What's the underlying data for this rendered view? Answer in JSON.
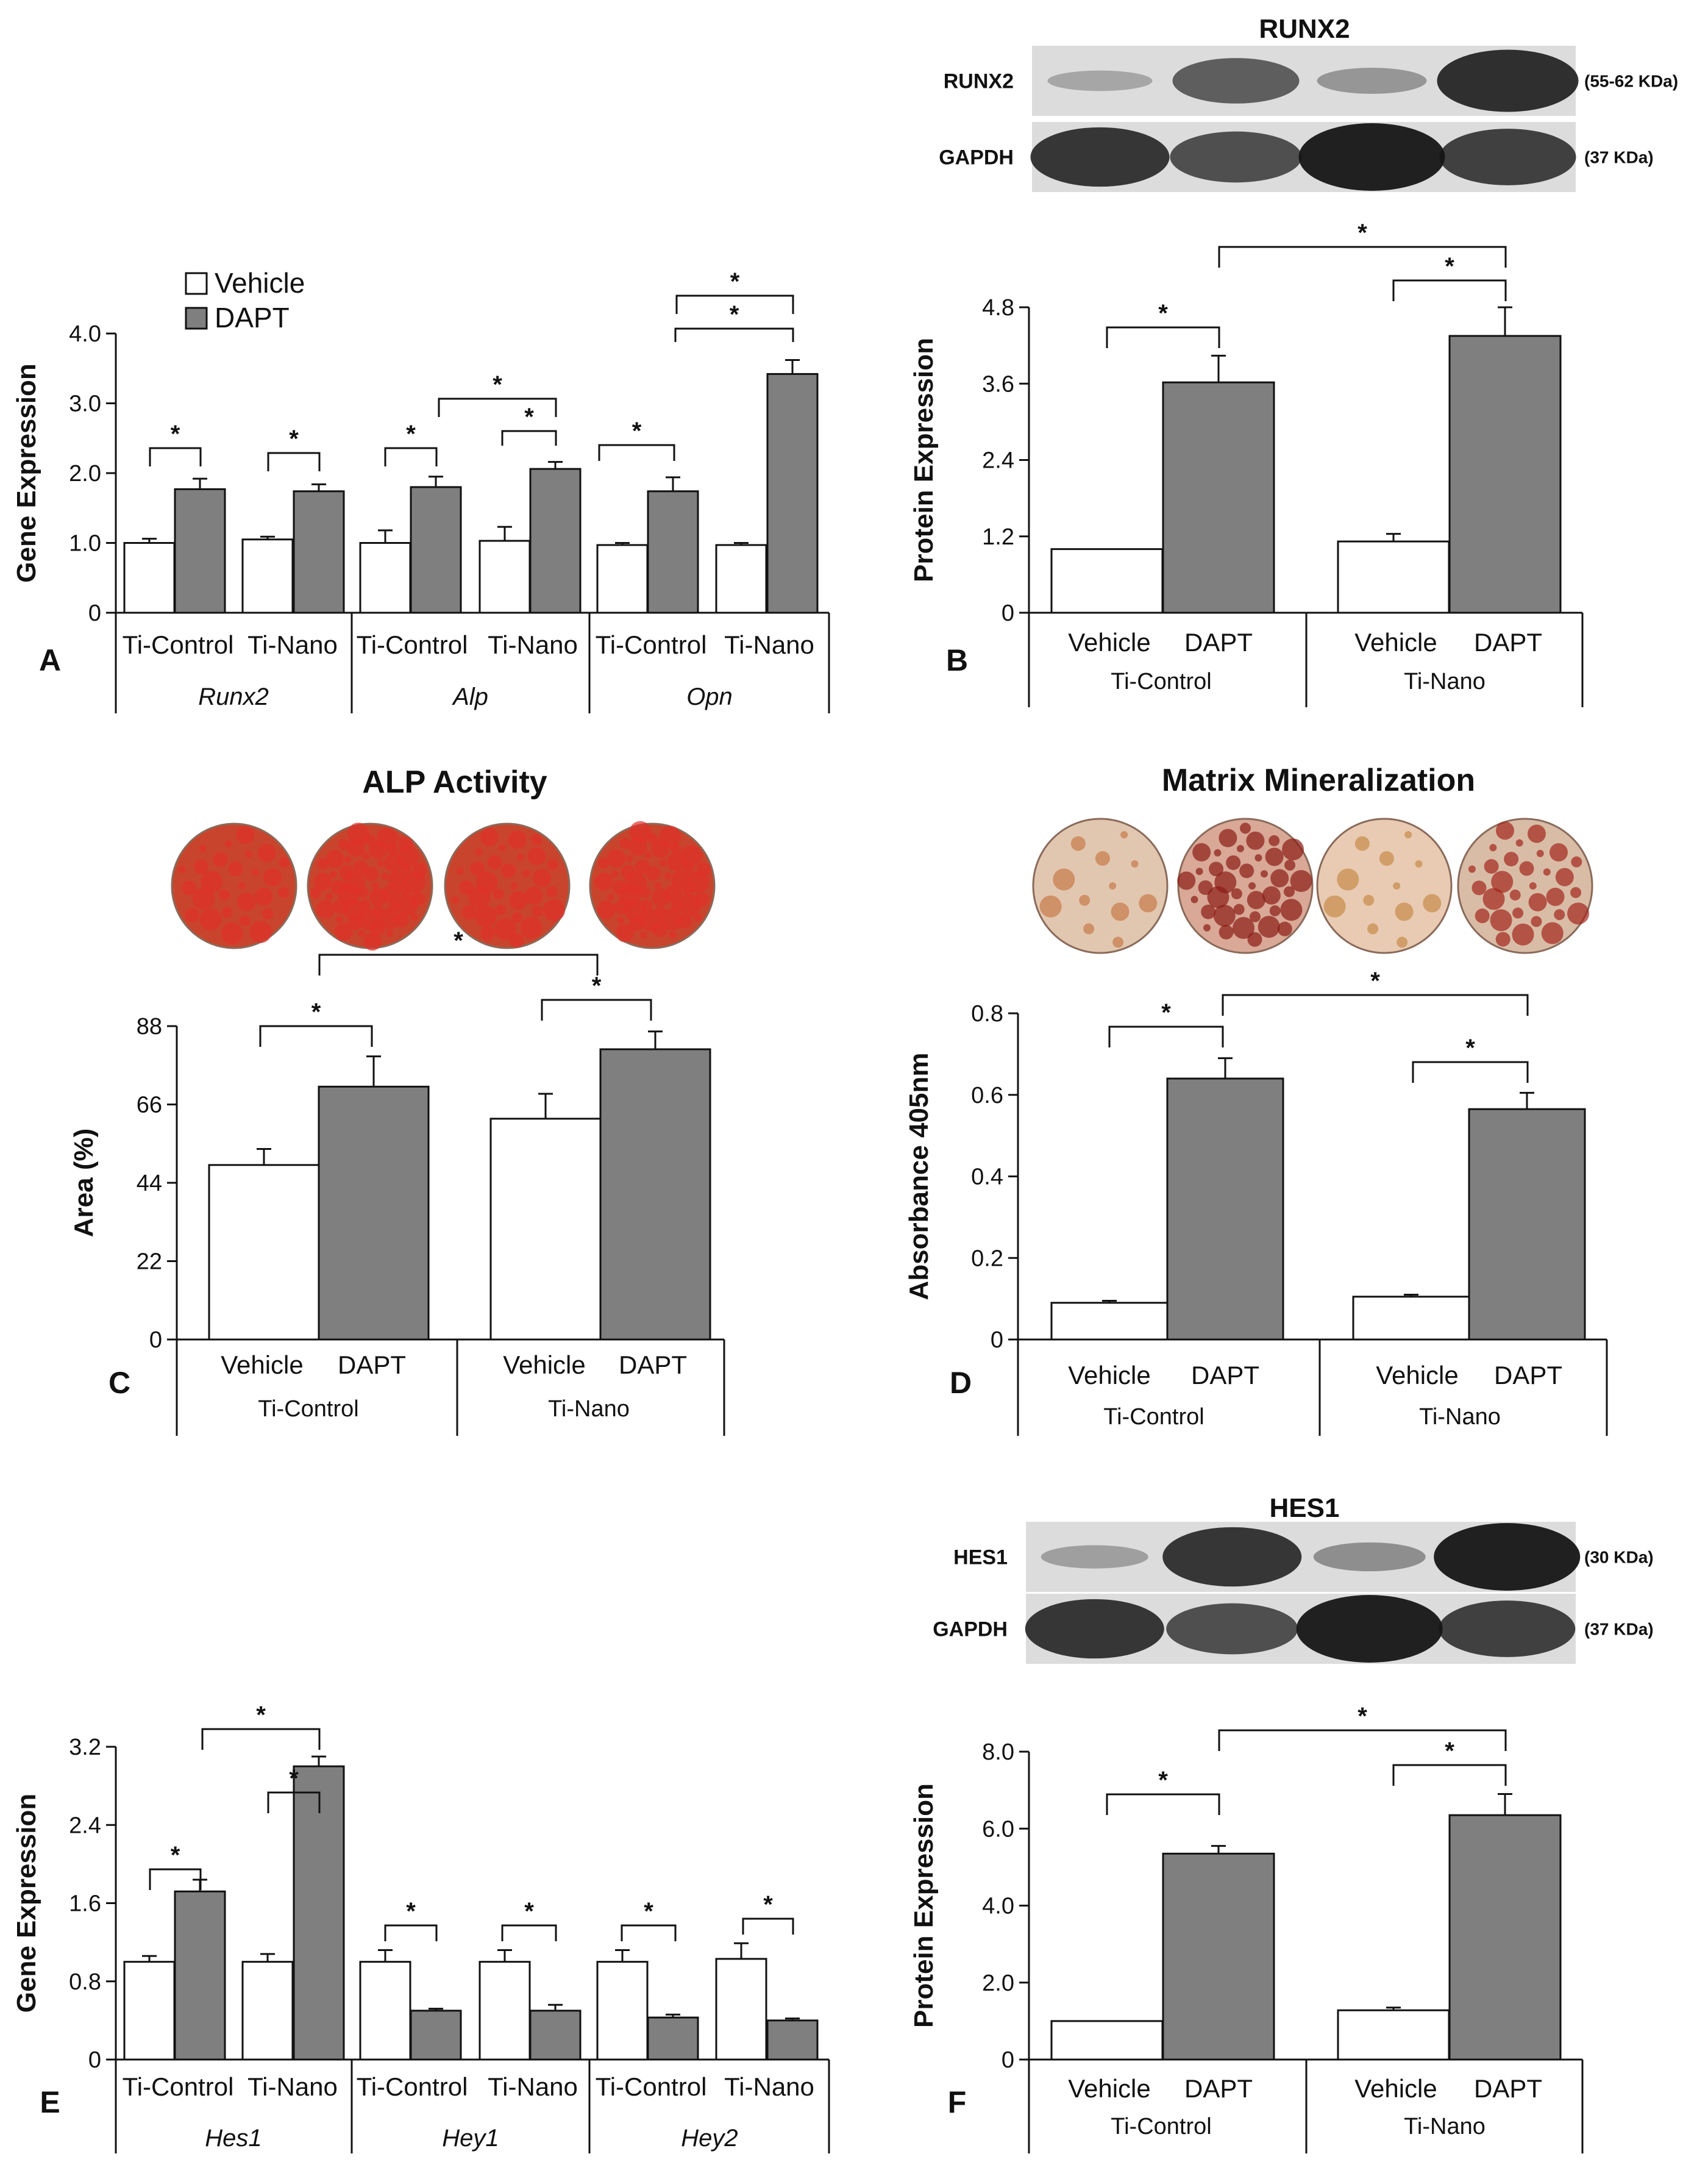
{
  "colors": {
    "vehicle": "#ffffff",
    "dapt": "#7f7f7f",
    "axis": "#111111",
    "blot_bg": "#dcdcdc",
    "band": "#151515"
  },
  "legend": {
    "vehicle": "Vehicle",
    "dapt": "DAPT"
  },
  "blots": [
    {
      "title": "RUNX2",
      "rows": [
        {
          "label": "RUNX2",
          "kda": "(55-62 KDa)",
          "intensity": [
            0.15,
            0.6,
            0.25,
            0.9
          ]
        },
        {
          "label": "GAPDH",
          "kda": "(37 KDa)",
          "intensity": [
            0.85,
            0.7,
            1.0,
            0.8
          ]
        }
      ]
    },
    {
      "title": "HES1",
      "rows": [
        {
          "label": "HES1",
          "kda": "(30 KDa)",
          "intensity": [
            0.2,
            0.85,
            0.3,
            1.0
          ]
        },
        {
          "label": "GAPDH",
          "kda": "(37 KDa)",
          "intensity": [
            0.85,
            0.7,
            1.0,
            0.8
          ]
        }
      ]
    }
  ],
  "chart_data": [
    {
      "panel": "A",
      "type": "bar",
      "ylabel": "Gene Expression",
      "ylim": [
        0,
        4.0
      ],
      "yticks": [
        "0",
        "1.0",
        "2.0",
        "3.0",
        "4.0"
      ],
      "groups": [
        "Runx2",
        "Alp",
        "Opn"
      ],
      "categories": [
        "Ti-Control",
        "Ti-Nano",
        "Ti-Control",
        "Ti-Nano",
        "Ti-Control",
        "Ti-Nano"
      ],
      "series": [
        {
          "name": "Vehicle",
          "values": [
            1.0,
            1.05,
            1.0,
            1.03,
            0.97,
            0.97
          ],
          "errors": [
            0.06,
            0.04,
            0.18,
            0.2,
            0.03,
            0.03
          ]
        },
        {
          "name": "DAPT",
          "values": [
            1.77,
            1.74,
            1.8,
            2.06,
            1.74,
            3.42
          ],
          "errors": [
            0.15,
            0.1,
            0.15,
            0.1,
            0.2,
            0.2
          ]
        }
      ],
      "sig_marks": [
        "*",
        "*",
        "*",
        "*",
        "*",
        "*",
        "*",
        "*",
        "*"
      ]
    },
    {
      "panel": "B",
      "type": "bar",
      "ylabel": "Protein Expression",
      "ylim": [
        0,
        4.8
      ],
      "yticks": [
        "0",
        "1.2",
        "2.4",
        "3.6",
        "4.8"
      ],
      "groups": [
        "Ti-Control",
        "Ti-Nano"
      ],
      "categories": [
        "Vehicle",
        "DAPT",
        "Vehicle",
        "DAPT"
      ],
      "values": [
        1.0,
        3.62,
        1.12,
        4.35
      ],
      "errors": [
        0,
        0.42,
        0.12,
        0.45
      ],
      "sig_marks": [
        "*",
        "*",
        "*"
      ]
    },
    {
      "panel": "C",
      "type": "bar",
      "title": "ALP Activity",
      "ylabel": "Area (%)",
      "ylim": [
        0,
        88
      ],
      "yticks": [
        "0",
        "22",
        "44",
        "66",
        "88"
      ],
      "groups": [
        "Ti-Control",
        "Ti-Nano"
      ],
      "categories": [
        "Vehicle",
        "DAPT",
        "Vehicle",
        "DAPT"
      ],
      "values": [
        49,
        71,
        62,
        81.5
      ],
      "errors": [
        4.5,
        8.5,
        7,
        5
      ],
      "sig_marks": [
        "*",
        "*",
        "*"
      ]
    },
    {
      "panel": "D",
      "type": "bar",
      "title": "Matrix Mineralization",
      "ylabel": "Absorbance 405nm",
      "ylim": [
        0,
        0.8
      ],
      "yticks": [
        "0",
        "0.2",
        "0.4",
        "0.6",
        "0.8"
      ],
      "groups": [
        "Ti-Control",
        "Ti-Nano"
      ],
      "categories": [
        "Vehicle",
        "DAPT",
        "Vehicle",
        "DAPT"
      ],
      "values": [
        0.09,
        0.64,
        0.105,
        0.565
      ],
      "errors": [
        0.005,
        0.05,
        0.005,
        0.04
      ],
      "sig_marks": [
        "*",
        "*",
        "*"
      ]
    },
    {
      "panel": "E",
      "type": "bar",
      "ylabel": "Gene Expression",
      "ylim": [
        0,
        3.2
      ],
      "yticks": [
        "0",
        "0.8",
        "1.6",
        "2.4",
        "3.2"
      ],
      "groups": [
        "Hes1",
        "Hey1",
        "Hey2"
      ],
      "categories": [
        "Ti-Control",
        "Ti-Nano",
        "Ti-Control",
        "Ti-Nano",
        "Ti-Control",
        "Ti-Nano"
      ],
      "series": [
        {
          "name": "Vehicle",
          "values": [
            1.0,
            1.0,
            1.0,
            1.0,
            1.0,
            1.03
          ],
          "errors": [
            0.06,
            0.08,
            0.12,
            0.12,
            0.12,
            0.16
          ]
        },
        {
          "name": "DAPT",
          "values": [
            1.72,
            3.0,
            0.5,
            0.5,
            0.43,
            0.4
          ],
          "errors": [
            0.12,
            0.1,
            0.02,
            0.06,
            0.03,
            0.02
          ]
        }
      ],
      "sig_marks": [
        "*",
        "*",
        "*",
        "*",
        "*",
        "*",
        "*",
        "*"
      ]
    },
    {
      "panel": "F",
      "type": "bar",
      "ylabel": "Protein Expression",
      "ylim": [
        0,
        8.0
      ],
      "yticks": [
        "0",
        "2.0",
        "4.0",
        "6.0",
        "8.0"
      ],
      "groups": [
        "Ti-Control",
        "Ti-Nano"
      ],
      "categories": [
        "Vehicle",
        "DAPT",
        "Vehicle",
        "DAPT"
      ],
      "values": [
        1.0,
        5.35,
        1.28,
        6.35
      ],
      "errors": [
        0,
        0.2,
        0.07,
        0.55
      ],
      "sig_marks": [
        "*",
        "*",
        "*"
      ]
    }
  ]
}
